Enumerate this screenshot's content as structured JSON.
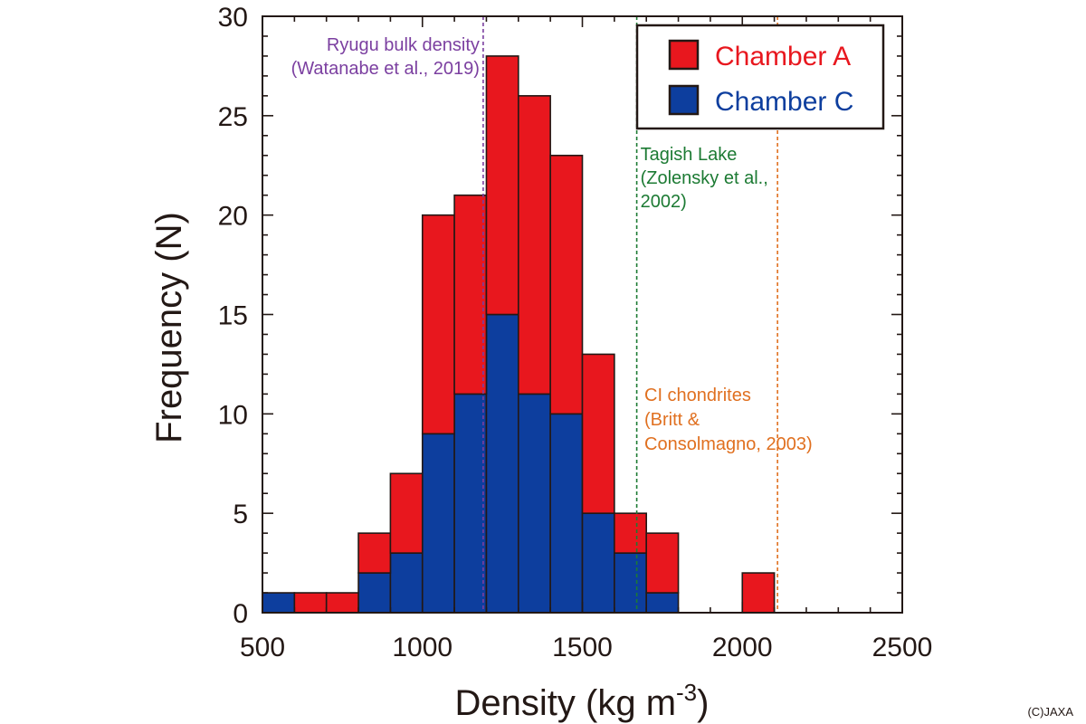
{
  "chart_data": {
    "type": "bar",
    "stacked": true,
    "bin_edges": [
      500,
      600,
      700,
      800,
      900,
      1000,
      1100,
      1200,
      1300,
      1400,
      1500,
      1600,
      1700,
      1800,
      1900,
      2000,
      2100
    ],
    "series": [
      {
        "name": "Chamber C",
        "color": "#0d3e9e",
        "values": [
          1,
          0,
          0,
          2,
          3,
          9,
          11,
          15,
          11,
          10,
          5,
          3,
          1,
          0,
          0,
          0
        ]
      },
      {
        "name": "Chamber A",
        "color": "#e8171e",
        "values": [
          0,
          1,
          1,
          2,
          4,
          11,
          10,
          13,
          15,
          13,
          8,
          2,
          3,
          0,
          0,
          2
        ]
      }
    ],
    "xlabel": "Density (kg m",
    "xlabel_sup": "-3",
    "xlabel_close": ")",
    "ylabel": "Frequency (N)",
    "xlim": [
      500,
      2500
    ],
    "ylim": [
      0,
      30
    ],
    "xticks": [
      500,
      1000,
      1500,
      2000,
      2500
    ],
    "yticks": [
      0,
      5,
      10,
      15,
      20,
      25,
      30
    ],
    "grid": false,
    "legend_position": "top-right",
    "reference_lines": [
      {
        "x": 1190,
        "color": "#7b3fa0",
        "lines": [
          "Ryugu bulk density",
          "(Watanabe et al., 2019)"
        ],
        "label_side": "left"
      },
      {
        "x": 1670,
        "color": "#1c7a33",
        "lines": [
          "Tagish Lake",
          "(Zolensky et al.,",
          "2002)"
        ],
        "label_side": "right"
      },
      {
        "x": 2110,
        "color": "#e07020",
        "lines": [
          "CI chondrites",
          "(Britt &",
          "Consolmagno, 2003)"
        ],
        "label_side": "left"
      }
    ]
  },
  "copyright": "(C)JAXA"
}
